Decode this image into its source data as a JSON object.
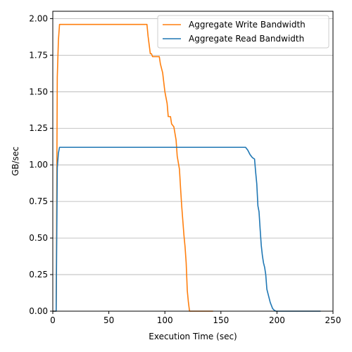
{
  "chart_data": {
    "type": "line",
    "xlabel": "Execution Time (sec)",
    "ylabel": "GB/sec",
    "xlim": [
      0,
      250
    ],
    "ylim": [
      0,
      2.05
    ],
    "xticks": [
      0,
      50,
      100,
      150,
      200,
      250
    ],
    "yticks": [
      0.0,
      0.25,
      0.5,
      0.75,
      1.0,
      1.25,
      1.5,
      1.75,
      2.0
    ],
    "ytick_labels": [
      "0.00",
      "0.25",
      "0.50",
      "0.75",
      "1.00",
      "1.25",
      "1.50",
      "1.75",
      "2.00"
    ],
    "grid": "horizontal",
    "legend_position": "top-right",
    "series": [
      {
        "name": "Aggregate Write Bandwidth",
        "color": "#ff7f0e",
        "points": [
          [
            0,
            0
          ],
          [
            3,
            0
          ],
          [
            4,
            1.6
          ],
          [
            5,
            1.85
          ],
          [
            6,
            1.96
          ],
          [
            20,
            1.96
          ],
          [
            50,
            1.96
          ],
          [
            84,
            1.96
          ],
          [
            85,
            1.88
          ],
          [
            87,
            1.76
          ],
          [
            88,
            1.76
          ],
          [
            89,
            1.74
          ],
          [
            95,
            1.74
          ],
          [
            96,
            1.69
          ],
          [
            98,
            1.63
          ],
          [
            100,
            1.5
          ],
          [
            102,
            1.42
          ],
          [
            103,
            1.33
          ],
          [
            105,
            1.33
          ],
          [
            106,
            1.28
          ],
          [
            108,
            1.26
          ],
          [
            110,
            1.17
          ],
          [
            111,
            1.06
          ],
          [
            113,
            0.97
          ],
          [
            114,
            0.84
          ],
          [
            115,
            0.72
          ],
          [
            117,
            0.52
          ],
          [
            118,
            0.44
          ],
          [
            119,
            0.33
          ],
          [
            120,
            0.14
          ],
          [
            121,
            0.06
          ],
          [
            122,
            0
          ],
          [
            130,
            0
          ],
          [
            143,
            0
          ]
        ]
      },
      {
        "name": "Aggregate Read Bandwidth",
        "color": "#1f77b4",
        "points": [
          [
            0,
            0
          ],
          [
            3,
            0
          ],
          [
            4,
            0.98
          ],
          [
            5,
            1.08
          ],
          [
            6,
            1.12
          ],
          [
            50,
            1.12
          ],
          [
            100,
            1.12
          ],
          [
            150,
            1.12
          ],
          [
            172,
            1.12
          ],
          [
            174,
            1.1
          ],
          [
            176,
            1.07
          ],
          [
            178,
            1.05
          ],
          [
            180,
            1.04
          ],
          [
            181,
            0.95
          ],
          [
            182,
            0.87
          ],
          [
            183,
            0.72
          ],
          [
            184,
            0.68
          ],
          [
            185,
            0.56
          ],
          [
            186,
            0.45
          ],
          [
            187,
            0.38
          ],
          [
            188,
            0.33
          ],
          [
            189,
            0.3
          ],
          [
            190,
            0.25
          ],
          [
            191,
            0.15
          ],
          [
            192,
            0.12
          ],
          [
            193,
            0.09
          ],
          [
            194,
            0.06
          ],
          [
            195,
            0.04
          ],
          [
            196,
            0.02
          ],
          [
            197,
            0.01
          ],
          [
            199,
            0
          ],
          [
            220,
            0
          ],
          [
            239,
            0
          ]
        ]
      }
    ]
  }
}
